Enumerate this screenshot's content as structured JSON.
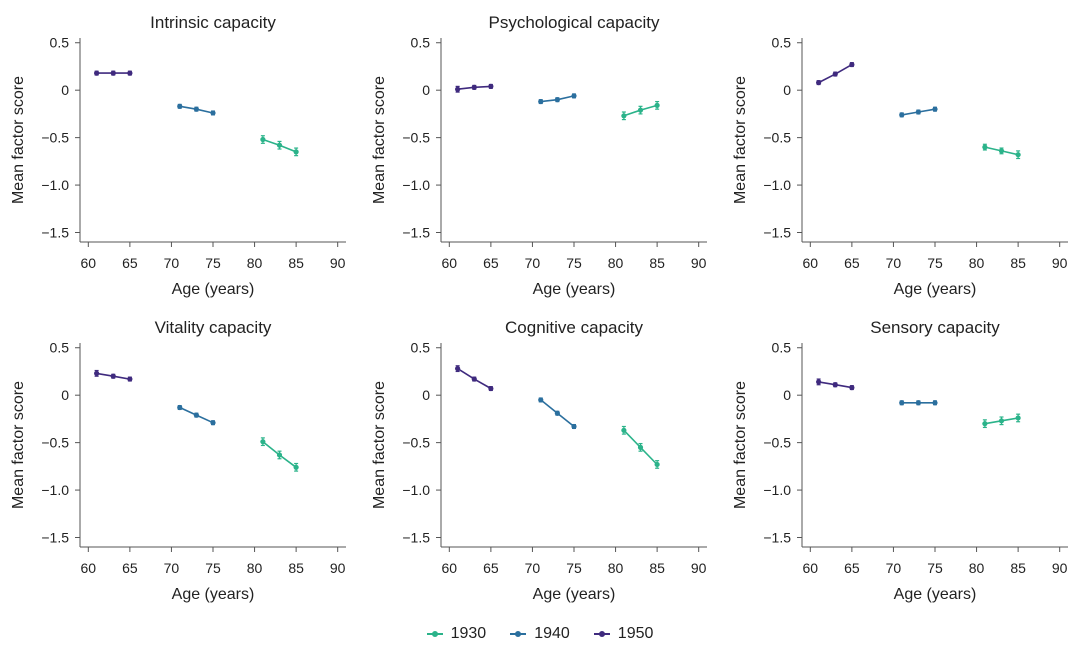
{
  "figure": {
    "legend": [
      {
        "label": "1930",
        "color": "#2bb38a"
      },
      {
        "label": "1940",
        "color": "#2b6f9e"
      },
      {
        "label": "1950",
        "color": "#3f2a7e"
      }
    ]
  },
  "chart_data": [
    {
      "type": "line",
      "title": "Intrinsic capacity",
      "xlabel": "Age (years)",
      "ylabel": "Mean factor score",
      "xlim": [
        59,
        91
      ],
      "ylim": [
        -1.6,
        0.55
      ],
      "xticks": [
        60,
        65,
        70,
        75,
        80,
        85,
        90
      ],
      "xtick_labels": [
        "60",
        "65",
        "70",
        "75",
        "80",
        "85",
        "90"
      ],
      "yticks": [
        0.5,
        0,
        -0.5,
        -1.0,
        -1.5
      ],
      "ytick_labels": [
        "0.5",
        "0",
        "−0.5",
        "−1.0",
        "−1.5"
      ],
      "series": [
        {
          "name": "1950",
          "color": "#3f2a7e",
          "x": [
            61,
            63,
            65
          ],
          "y": [
            0.18,
            0.18,
            0.18
          ],
          "err": [
            0.02,
            0.02,
            0.02
          ]
        },
        {
          "name": "1940",
          "color": "#2b6f9e",
          "x": [
            71,
            73,
            75
          ],
          "y": [
            -0.17,
            -0.2,
            -0.24
          ],
          "err": [
            0.02,
            0.02,
            0.02
          ]
        },
        {
          "name": "1930",
          "color": "#2bb38a",
          "x": [
            81,
            83,
            85
          ],
          "y": [
            -0.52,
            -0.58,
            -0.65
          ],
          "err": [
            0.04,
            0.04,
            0.04
          ]
        }
      ]
    },
    {
      "type": "line",
      "title": "Psychological capacity",
      "xlabel": "Age (years)",
      "ylabel": "Mean factor score",
      "xlim": [
        59,
        91
      ],
      "ylim": [
        -1.6,
        0.55
      ],
      "xticks": [
        60,
        65,
        70,
        75,
        80,
        85,
        90
      ],
      "xtick_labels": [
        "60",
        "65",
        "70",
        "75",
        "80",
        "85",
        "90"
      ],
      "yticks": [
        0.5,
        0,
        -0.5,
        -1.0,
        -1.5
      ],
      "ytick_labels": [
        "0.5",
        "0",
        "−0.5",
        "−1.0",
        "−1.5"
      ],
      "series": [
        {
          "name": "1950",
          "color": "#3f2a7e",
          "x": [
            61,
            63,
            65
          ],
          "y": [
            0.01,
            0.03,
            0.04
          ],
          "err": [
            0.03,
            0.02,
            0.02
          ]
        },
        {
          "name": "1940",
          "color": "#2b6f9e",
          "x": [
            71,
            73,
            75
          ],
          "y": [
            -0.12,
            -0.1,
            -0.06
          ],
          "err": [
            0.02,
            0.02,
            0.02
          ]
        },
        {
          "name": "1930",
          "color": "#2bb38a",
          "x": [
            81,
            83,
            85
          ],
          "y": [
            -0.27,
            -0.21,
            -0.16
          ],
          "err": [
            0.04,
            0.04,
            0.04
          ]
        }
      ]
    },
    {
      "type": "line",
      "title": "",
      "xlabel": "Age (years)",
      "ylabel": "Mean factor score",
      "xlim": [
        59,
        91
      ],
      "ylim": [
        -1.6,
        0.55
      ],
      "xticks": [
        60,
        65,
        70,
        75,
        80,
        85,
        90
      ],
      "xtick_labels": [
        "60",
        "65",
        "70",
        "75",
        "80",
        "85",
        "90"
      ],
      "yticks": [
        0.5,
        0,
        -0.5,
        -1.0,
        -1.5
      ],
      "ytick_labels": [
        "0.5",
        "0",
        "−0.5",
        "−1.0",
        "−1.5"
      ],
      "series": [
        {
          "name": "1950",
          "color": "#3f2a7e",
          "x": [
            61,
            63,
            65
          ],
          "y": [
            0.08,
            0.17,
            0.27
          ],
          "err": [
            0.02,
            0.02,
            0.02
          ]
        },
        {
          "name": "1940",
          "color": "#2b6f9e",
          "x": [
            71,
            73,
            75
          ],
          "y": [
            -0.26,
            -0.23,
            -0.2
          ],
          "err": [
            0.02,
            0.02,
            0.02
          ]
        },
        {
          "name": "1930",
          "color": "#2bb38a",
          "x": [
            81,
            83,
            85
          ],
          "y": [
            -0.6,
            -0.64,
            -0.68
          ],
          "err": [
            0.03,
            0.03,
            0.04
          ]
        }
      ]
    },
    {
      "type": "line",
      "title": "Vitality capacity",
      "xlabel": "Age (years)",
      "ylabel": "Mean factor score",
      "xlim": [
        59,
        91
      ],
      "ylim": [
        -1.6,
        0.55
      ],
      "xticks": [
        60,
        65,
        70,
        75,
        80,
        85,
        90
      ],
      "xtick_labels": [
        "60",
        "65",
        "70",
        "75",
        "80",
        "85",
        "90"
      ],
      "yticks": [
        0.5,
        0,
        -0.5,
        -1.0,
        -1.5
      ],
      "ytick_labels": [
        "0.5",
        "0",
        "−0.5",
        "−1.0",
        "−1.5"
      ],
      "series": [
        {
          "name": "1950",
          "color": "#3f2a7e",
          "x": [
            61,
            63,
            65
          ],
          "y": [
            0.23,
            0.2,
            0.17
          ],
          "err": [
            0.03,
            0.02,
            0.02
          ]
        },
        {
          "name": "1940",
          "color": "#2b6f9e",
          "x": [
            71,
            73,
            75
          ],
          "y": [
            -0.13,
            -0.21,
            -0.29
          ],
          "err": [
            0.02,
            0.02,
            0.02
          ]
        },
        {
          "name": "1930",
          "color": "#2bb38a",
          "x": [
            81,
            83,
            85
          ],
          "y": [
            -0.49,
            -0.63,
            -0.76
          ],
          "err": [
            0.04,
            0.04,
            0.04
          ]
        }
      ]
    },
    {
      "type": "line",
      "title": "Cognitive capacity",
      "xlabel": "Age (years)",
      "ylabel": "Mean factor score",
      "xlim": [
        59,
        91
      ],
      "ylim": [
        -1.6,
        0.55
      ],
      "xticks": [
        60,
        65,
        70,
        75,
        80,
        85,
        90
      ],
      "xtick_labels": [
        "60",
        "65",
        "70",
        "75",
        "80",
        "85",
        "90"
      ],
      "yticks": [
        0.5,
        0,
        -0.5,
        -1.0,
        -1.5
      ],
      "ytick_labels": [
        "0.5",
        "0",
        "−0.5",
        "−1.0",
        "−1.5"
      ],
      "series": [
        {
          "name": "1950",
          "color": "#3f2a7e",
          "x": [
            61,
            63,
            65
          ],
          "y": [
            0.28,
            0.17,
            0.07
          ],
          "err": [
            0.03,
            0.02,
            0.02
          ]
        },
        {
          "name": "1940",
          "color": "#2b6f9e",
          "x": [
            71,
            73,
            75
          ],
          "y": [
            -0.05,
            -0.19,
            -0.33
          ],
          "err": [
            0.02,
            0.02,
            0.02
          ]
        },
        {
          "name": "1930",
          "color": "#2bb38a",
          "x": [
            81,
            83,
            85
          ],
          "y": [
            -0.37,
            -0.55,
            -0.73
          ],
          "err": [
            0.04,
            0.04,
            0.04
          ]
        }
      ]
    },
    {
      "type": "line",
      "title": "Sensory capacity",
      "xlabel": "Age (years)",
      "ylabel": "Mean factor score",
      "xlim": [
        59,
        91
      ],
      "ylim": [
        -1.6,
        0.55
      ],
      "xticks": [
        60,
        65,
        70,
        75,
        80,
        85,
        90
      ],
      "xtick_labels": [
        "60",
        "65",
        "70",
        "75",
        "80",
        "85",
        "90"
      ],
      "yticks": [
        0.5,
        0,
        -0.5,
        -1.0,
        -1.5
      ],
      "ytick_labels": [
        "0.5",
        "0",
        "−0.5",
        "−1.0",
        "−1.5"
      ],
      "series": [
        {
          "name": "1950",
          "color": "#3f2a7e",
          "x": [
            61,
            63,
            65
          ],
          "y": [
            0.14,
            0.11,
            0.08
          ],
          "err": [
            0.03,
            0.02,
            0.02
          ]
        },
        {
          "name": "1940",
          "color": "#2b6f9e",
          "x": [
            71,
            73,
            75
          ],
          "y": [
            -0.08,
            -0.08,
            -0.08
          ],
          "err": [
            0.02,
            0.02,
            0.02
          ]
        },
        {
          "name": "1930",
          "color": "#2bb38a",
          "x": [
            81,
            83,
            85
          ],
          "y": [
            -0.3,
            -0.27,
            -0.24
          ],
          "err": [
            0.04,
            0.04,
            0.04
          ]
        }
      ]
    }
  ]
}
